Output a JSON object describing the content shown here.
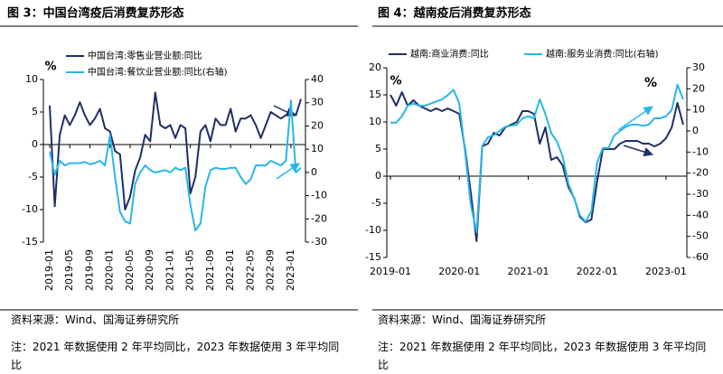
{
  "chart_data": [
    {
      "type": "line",
      "title": "图 3：中国台湾疫后消费复苏形态",
      "y_unit": "%",
      "x": [
        "2019-01",
        "2019-02",
        "2019-03",
        "2019-04",
        "2019-05",
        "2019-06",
        "2019-07",
        "2019-08",
        "2019-09",
        "2019-10",
        "2019-11",
        "2019-12",
        "2020-01",
        "2020-02",
        "2020-03",
        "2020-04",
        "2020-05",
        "2020-06",
        "2020-07",
        "2020-08",
        "2020-09",
        "2020-10",
        "2020-11",
        "2020-12",
        "2021-01",
        "2021-02",
        "2021-03",
        "2021-04",
        "2021-05",
        "2021-06",
        "2021-07",
        "2021-08",
        "2021-09",
        "2021-10",
        "2021-11",
        "2021-12",
        "2022-01",
        "2022-02",
        "2022-03",
        "2022-04",
        "2022-05",
        "2022-06",
        "2022-07",
        "2022-08",
        "2022-09",
        "2022-10",
        "2022-11",
        "2022-12",
        "2023-01",
        "2023-02",
        "2023-03"
      ],
      "xticks": [
        "2019-01",
        "2019-05",
        "2019-09",
        "2020-01",
        "2020-05",
        "2020-09",
        "2021-01",
        "2021-05",
        "2021-09",
        "2022-01",
        "2022-05",
        "2022-09",
        "2023-01"
      ],
      "series": [
        {
          "name": "中国台湾:零售业营业额:同比",
          "color": "#1f2f66",
          "values": [
            6,
            -9.5,
            1.5,
            4.5,
            3,
            4.5,
            6.5,
            4.5,
            3,
            4,
            5.5,
            2.5,
            2,
            -1,
            -1.5,
            -10,
            -8,
            -4,
            -2,
            1.5,
            0.5,
            8,
            3,
            2.5,
            3,
            1,
            3,
            2.5,
            -7.5,
            -5,
            2,
            3,
            0.5,
            4,
            3,
            3,
            5.5,
            2,
            4,
            4,
            4.5,
            3,
            1,
            3,
            5,
            4.5,
            4,
            4.5,
            5,
            4.5,
            7
          ]
        },
        {
          "name": "中国台湾:餐饮业营业额:同比(右轴)",
          "color": "#29b6e8",
          "axis": "y2",
          "values": [
            9,
            -1,
            5,
            3,
            4,
            4,
            4,
            4.5,
            3.5,
            4,
            5,
            3,
            16,
            -2,
            -17,
            -21,
            -22,
            -5,
            0,
            3,
            1,
            0,
            0.5,
            1,
            0,
            2,
            1,
            2,
            -14,
            -25,
            -22,
            -6,
            1,
            2,
            1.5,
            1.5,
            2,
            2,
            -2,
            -5,
            -3,
            3,
            3,
            3,
            5,
            4,
            3,
            5,
            31,
            0,
            2
          ]
        }
      ],
      "ylim": [
        -15,
        10
      ],
      "yticks": [
        -15,
        -10,
        -5,
        0,
        5,
        10
      ],
      "y2lim": [
        -30,
        40
      ],
      "y2ticks": [
        -30,
        -20,
        -10,
        0,
        10,
        20,
        30,
        40
      ],
      "source": "资料来源：Wind、国海证券研究所",
      "note": "注：2021 年数据使用 2 年平均同比，2023 年数据使用 3 年平均同比"
    },
    {
      "type": "line",
      "title": "图 4：越南疫后消费复苏形态",
      "y_unit": "%",
      "annotation": "%",
      "x": [
        "2019-01",
        "2019-02",
        "2019-03",
        "2019-04",
        "2019-05",
        "2019-06",
        "2019-07",
        "2019-08",
        "2019-09",
        "2019-10",
        "2019-11",
        "2019-12",
        "2020-01",
        "2020-02",
        "2020-03",
        "2020-04",
        "2020-05",
        "2020-06",
        "2020-07",
        "2020-08",
        "2020-09",
        "2020-10",
        "2020-11",
        "2020-12",
        "2021-01",
        "2021-02",
        "2021-03",
        "2021-04",
        "2021-05",
        "2021-06",
        "2021-07",
        "2021-08",
        "2021-09",
        "2021-10",
        "2021-11",
        "2021-12",
        "2022-01",
        "2022-02",
        "2022-03",
        "2022-04",
        "2022-05",
        "2022-06",
        "2022-07",
        "2022-08",
        "2022-09",
        "2022-10",
        "2022-11",
        "2022-12",
        "2023-01",
        "2023-02",
        "2023-03",
        "2023-04"
      ],
      "xticks": [
        "2019-01",
        "2020-01",
        "2021-01",
        "2022-01",
        "2023-01"
      ],
      "series": [
        {
          "name": "越南:商业消费:同比",
          "color": "#1f2f66",
          "values": [
            15,
            13,
            15.5,
            13,
            14,
            13,
            12.5,
            12,
            12.5,
            12,
            12.5,
            12,
            11.5,
            5,
            -3,
            -12,
            5.5,
            6,
            8,
            7.5,
            9,
            9.5,
            10,
            12,
            12,
            11.5,
            6,
            9,
            3,
            3.5,
            2,
            -2,
            -4,
            -7.5,
            -8.5,
            -8,
            -1,
            5,
            5,
            5,
            6,
            6.5,
            6.5,
            6.5,
            6,
            6,
            5.5,
            6,
            7,
            9,
            13.5,
            9.5
          ]
        },
        {
          "name": "越南:服务业消费:同比(右轴)",
          "color": "#29b6e8",
          "axis": "y2",
          "values": [
            4,
            4,
            7,
            12,
            13,
            12,
            12,
            13,
            14,
            15,
            17,
            19.5,
            13,
            -10,
            -35,
            -48,
            -7,
            -3,
            -2,
            0,
            2,
            2.5,
            3,
            6,
            7,
            6,
            15,
            8,
            -1,
            -5,
            -12,
            -25,
            -32,
            -40,
            -43,
            -38,
            -15,
            -8,
            -8,
            -2,
            0,
            2,
            3,
            3,
            2.5,
            3,
            6,
            6,
            7,
            10,
            22,
            15
          ]
        }
      ],
      "ylim": [
        -15,
        20
      ],
      "yticks": [
        -15,
        -10,
        -5,
        0,
        5,
        10,
        15,
        20
      ],
      "y2lim": [
        -60,
        30
      ],
      "y2ticks": [
        -60,
        -50,
        -40,
        -30,
        -20,
        -10,
        0,
        10,
        20,
        30
      ],
      "source": "资料来源：Wind、国海证券研究所",
      "note": "注：2021 年数据使用 2 年平均同比，2023 年数据使用 3 年平均同比"
    }
  ]
}
